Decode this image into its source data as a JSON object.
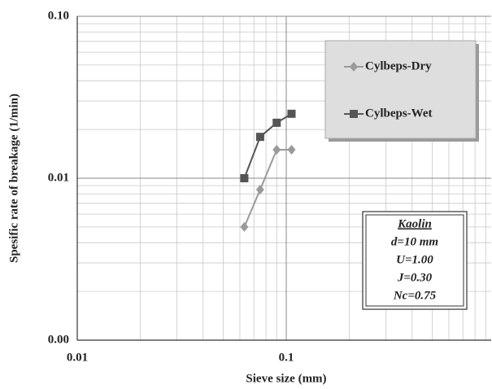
{
  "chart_data": {
    "type": "line",
    "x_label": "Sieve size (mm)",
    "y_label": "Spesific rate of  breakage  (1/min)",
    "xlim": [
      0.01,
      1
    ],
    "ylim": [
      0.001,
      0.1
    ],
    "xticks": [
      0.01,
      0.1,
      1
    ],
    "yticks": [
      {
        "value": 0.001,
        "label": "0.00"
      },
      0.01,
      {
        "value": 0.1,
        "label": "0.10"
      }
    ],
    "x_log": true,
    "y_log": true,
    "grid": true,
    "legend": "upper right",
    "series": [
      {
        "name": "Cylbeps-Dry",
        "color": "#9a9a9a",
        "marker": "diamond",
        "x": [
          0.063,
          0.075,
          0.09,
          0.106
        ],
        "values": [
          0.005,
          0.0085,
          0.015,
          0.015
        ]
      },
      {
        "name": "Cylbeps-Wet",
        "color": "#555555",
        "marker": "square",
        "x": [
          0.063,
          0.075,
          0.09,
          0.106
        ],
        "values": [
          0.01,
          0.018,
          0.022,
          0.025
        ]
      }
    ],
    "annotation": [
      "Kaolin",
      "d=10 mm",
      "U=1.00",
      "J=0.30",
      "Nc=0.75"
    ]
  }
}
